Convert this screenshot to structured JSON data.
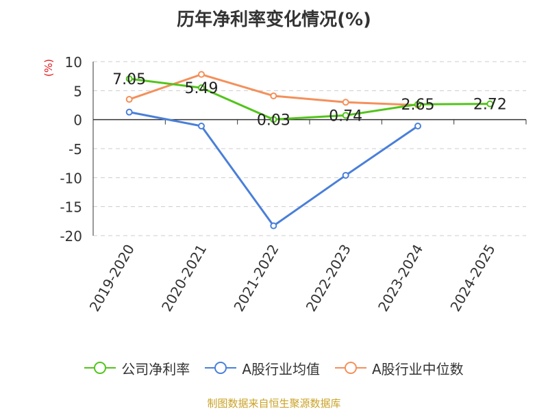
{
  "chart_data": {
    "type": "line",
    "title": "历年净利率变化情况(%)",
    "ylabel": "(%)",
    "categories": [
      "2019-2020",
      "2020-2021",
      "2021-2022",
      "2022-2023",
      "2023-2024",
      "2024-2025"
    ],
    "ylim": [
      -20,
      10
    ],
    "yticks": [
      10,
      5,
      0,
      -5,
      -10,
      -15,
      -20
    ],
    "grid": true,
    "legend_position": "bottom",
    "series": [
      {
        "name": "公司净利率",
        "color": "#52c41a",
        "values": [
          7.05,
          5.49,
          0.03,
          0.74,
          2.65,
          2.72
        ],
        "labels": [
          "7.05",
          "5.49",
          "0.03",
          "0.74",
          "2.65",
          "2.72"
        ]
      },
      {
        "name": "A股行业均值",
        "color": "#4a7fd9",
        "values": [
          1.3,
          -1.1,
          -18.3,
          -9.6,
          -1.1,
          null
        ]
      },
      {
        "name": "A股行业中位数",
        "color": "#f4905a",
        "values": [
          3.5,
          7.8,
          4.1,
          3.0,
          2.5,
          null
        ]
      }
    ]
  },
  "source": "制图数据来自恒生聚源数据库"
}
